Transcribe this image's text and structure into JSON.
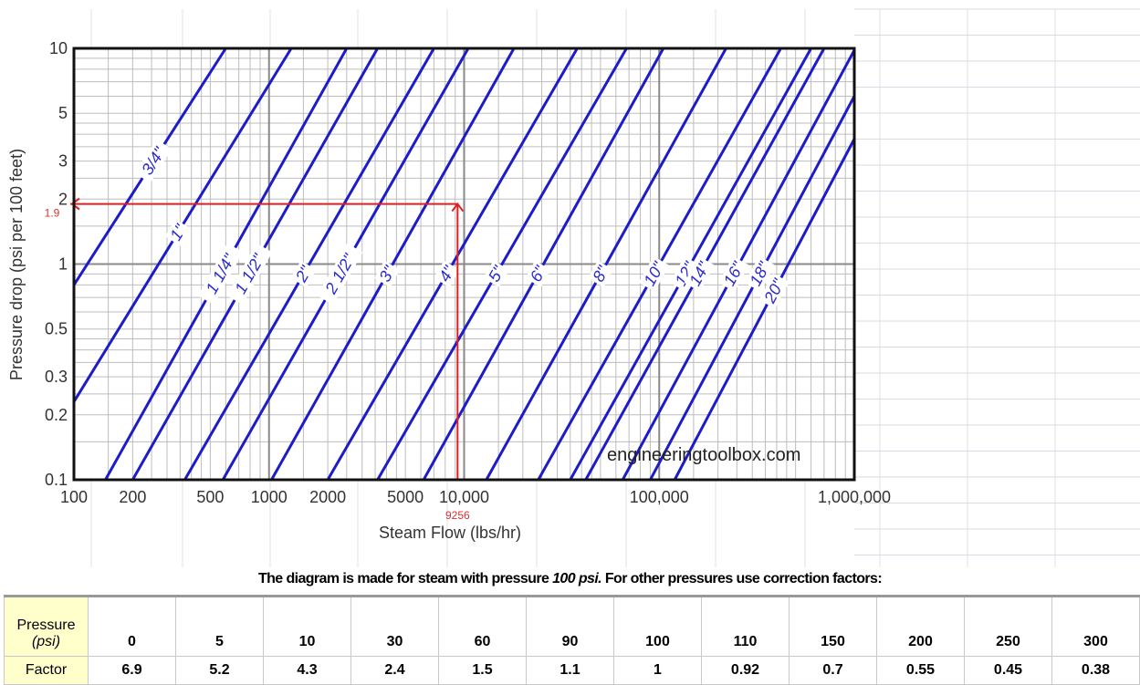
{
  "chart_data": {
    "type": "line",
    "scale": {
      "x": "log",
      "y": "log"
    },
    "xlabel": "Steam Flow (lbs/hr)",
    "ylabel": "Pressure drop (psi per 100 feet)",
    "xlim": [
      100,
      1000000
    ],
    "ylim": [
      0.1,
      10
    ],
    "x_tick_labels": [
      {
        "value": 100,
        "label": "100"
      },
      {
        "value": 200,
        "label": "200"
      },
      {
        "value": 500,
        "label": "500"
      },
      {
        "value": 1000,
        "label": "1000"
      },
      {
        "value": 2000,
        "label": "2000"
      },
      {
        "value": 5000,
        "label": "5000"
      },
      {
        "value": 10000,
        "label": "10,000"
      },
      {
        "value": 100000,
        "label": "100,000"
      },
      {
        "value": 1000000,
        "label": "1,000,000"
      }
    ],
    "y_tick_labels": [
      {
        "value": 10,
        "label": "10"
      },
      {
        "value": 5,
        "label": "5"
      },
      {
        "value": 3,
        "label": "3"
      },
      {
        "value": 2,
        "label": "2"
      },
      {
        "value": 1,
        "label": "1"
      },
      {
        "value": 0.5,
        "label": "0.5"
      },
      {
        "value": 0.3,
        "label": "0.3"
      },
      {
        "value": 0.2,
        "label": "0.2"
      },
      {
        "value": 0.1,
        "label": "0.1"
      }
    ],
    "grid": true,
    "series": [
      {
        "name": "3/4\"",
        "x": [
          100,
          600
        ],
        "y": [
          0.8,
          10
        ]
      },
      {
        "name": "1\"",
        "x": [
          100,
          1300
        ],
        "y": [
          0.23,
          10
        ]
      },
      {
        "name": "1 1/4\"",
        "x": [
          145,
          2500
        ],
        "y": [
          0.1,
          10
        ]
      },
      {
        "name": "1 1/2\"",
        "x": [
          200,
          3600
        ],
        "y": [
          0.1,
          10
        ]
      },
      {
        "name": "2\"",
        "x": [
          370,
          7000
        ],
        "y": [
          0.1,
          10
        ]
      },
      {
        "name": "2 1/2\"",
        "x": [
          580,
          10500
        ],
        "y": [
          0.1,
          10
        ]
      },
      {
        "name": "3\"",
        "x": [
          1030,
          18000
        ],
        "y": [
          0.1,
          10
        ]
      },
      {
        "name": "4\"",
        "x": [
          2000,
          38000
        ],
        "y": [
          0.1,
          10
        ]
      },
      {
        "name": "5\"",
        "x": [
          3600,
          68000
        ],
        "y": [
          0.1,
          10
        ]
      },
      {
        "name": "6\"",
        "x": [
          6200,
          105000
        ],
        "y": [
          0.1,
          10
        ]
      },
      {
        "name": "8\"",
        "x": [
          13000,
          220000
        ],
        "y": [
          0.1,
          10
        ]
      },
      {
        "name": "10\"",
        "x": [
          24000,
          420000
        ],
        "y": [
          0.1,
          10
        ]
      },
      {
        "name": "12\"",
        "x": [
          35000,
          600000
        ],
        "y": [
          0.1,
          10
        ]
      },
      {
        "name": "14\"",
        "x": [
          42000,
          700000
        ],
        "y": [
          0.1,
          10
        ]
      },
      {
        "name": "16\"",
        "x": [
          65000,
          1000000
        ],
        "y": [
          0.1,
          9.8
        ]
      },
      {
        "name": "18\"",
        "x": [
          90000,
          1000000
        ],
        "y": [
          0.1,
          6
        ]
      },
      {
        "name": "20\"",
        "x": [
          120000,
          1000000
        ],
        "y": [
          0.1,
          3.8
        ]
      }
    ],
    "example": {
      "flow": 9256,
      "flow_label": "9256",
      "pressure_drop": 1.9,
      "pressure_drop_label": "1.9"
    },
    "watermark": "engineeringtoolbox.com"
  },
  "note": {
    "prefix": "The diagram is made for steam with pressure ",
    "emphasis": "100 psi.",
    "suffix": " For other pressures use correction factors:"
  },
  "table": {
    "pressure_header": "Pressure",
    "pressure_unit": "(psi)",
    "factor_header": "Factor",
    "pressures": [
      "0",
      "5",
      "10",
      "30",
      "60",
      "90",
      "100",
      "110",
      "150",
      "200",
      "250",
      "300"
    ],
    "factors": [
      "6.9",
      "5.2",
      "4.3",
      "2.4",
      "1.5",
      "1.1",
      "1",
      "0.92",
      "0.7",
      "0.55",
      "0.45",
      "0.38"
    ]
  },
  "colors": {
    "series": "#1c1cc8",
    "example": "#e02020",
    "header_fill": "#ffffcc"
  }
}
